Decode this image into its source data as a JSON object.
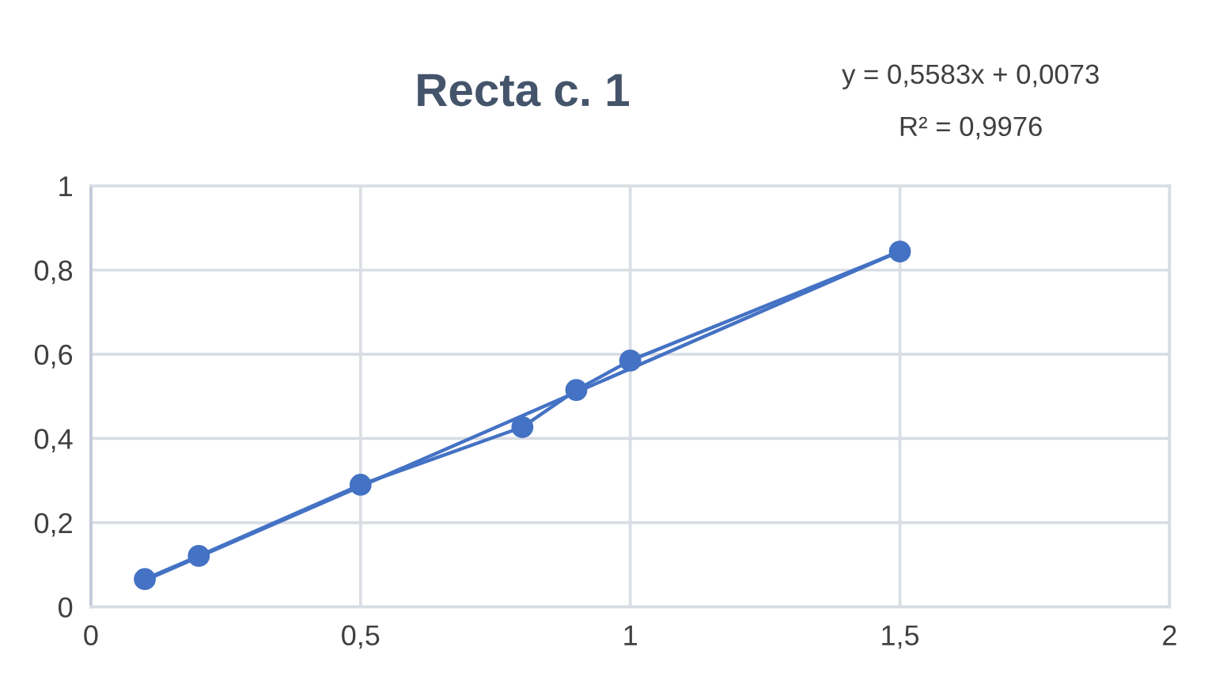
{
  "chart_data": {
    "type": "line",
    "title": "Recta c. 1",
    "annotations": [
      "y = 0,5583x + 0,0073",
      "R² = 0,9976"
    ],
    "series": [
      {
        "marker": "circle",
        "color": "#4472c4",
        "x": [
          0.1,
          0.2,
          0.5,
          0.8,
          0.9,
          1,
          1.5
        ],
        "values": [
          0.066,
          0.121,
          0.29,
          0.427,
          0.515,
          0.585,
          0.844
        ]
      },
      {
        "marker": "none",
        "color": "#4472c4",
        "x": [
          0.1,
          1.5
        ],
        "values": [
          0.063,
          0.845
        ]
      }
    ],
    "xlim": [
      0,
      2
    ],
    "xticks": [
      0,
      {
        "value": 0.5,
        "label": "0,5"
      },
      1,
      {
        "value": 1.5,
        "label": "1,5"
      },
      2
    ],
    "ylim": [
      0,
      1
    ],
    "yticks": [
      0,
      {
        "value": 0.2,
        "label": "0,2"
      },
      {
        "value": 0.4,
        "label": "0,4"
      },
      {
        "value": 0.6,
        "label": "0,6"
      },
      {
        "value": 0.8,
        "label": "0,8"
      },
      1
    ],
    "grid": true,
    "legend": false
  }
}
